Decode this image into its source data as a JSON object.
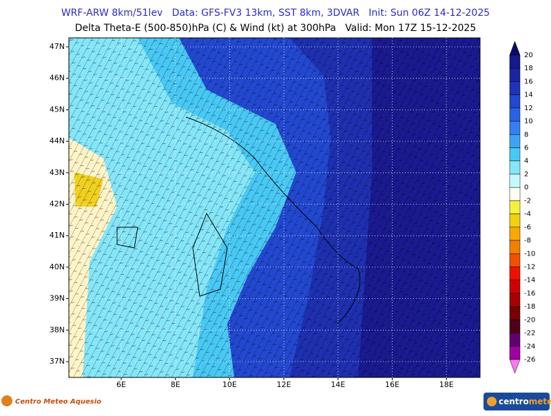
{
  "header": {
    "line1": "WRF-ARW 8km/51lev   Data: GFS-FV3 13km, SST 8km, 3DVAR   Init: Sun 06Z 14-12-2025",
    "line2": "Delta Theta-E (500-850)hPa (C) & Wind (kt) at 300hPa   Valid: Mon 17Z 15-12-2025"
  },
  "map": {
    "lat_labels": [
      "47N",
      "46N",
      "45N",
      "44N",
      "43N",
      "42N",
      "41N",
      "40N",
      "39N",
      "38N",
      "37N"
    ],
    "lon_labels": [
      "6E",
      "8E",
      "10E",
      "12E",
      "14E",
      "16E",
      "18E"
    ]
  },
  "colorbar": {
    "ticks": [
      20,
      18,
      16,
      14,
      12,
      10,
      8,
      6,
      4,
      2,
      0,
      -2,
      -4,
      -6,
      -8,
      -10,
      -12,
      -14,
      -16,
      -18,
      -20,
      -22,
      -24,
      -26
    ],
    "colors": [
      "#0a0a6e",
      "#141a88",
      "#1a26a0",
      "#1e34b8",
      "#2248d0",
      "#2a62e4",
      "#3480f0",
      "#3ca4f4",
      "#48c8f4",
      "#84e6f8",
      "#c4faff",
      "#fffff0",
      "#f8f040",
      "#f0d010",
      "#f8a800",
      "#f08000",
      "#f05000",
      "#f01000",
      "#d00000",
      "#a80000",
      "#780000",
      "#500018",
      "#600070",
      "#a000a0",
      "#f878f0"
    ]
  },
  "footer": {
    "left_logo": "Centro Meteo Aquesio",
    "right_logo_a": "centro",
    "right_logo_b": "meteo"
  }
}
